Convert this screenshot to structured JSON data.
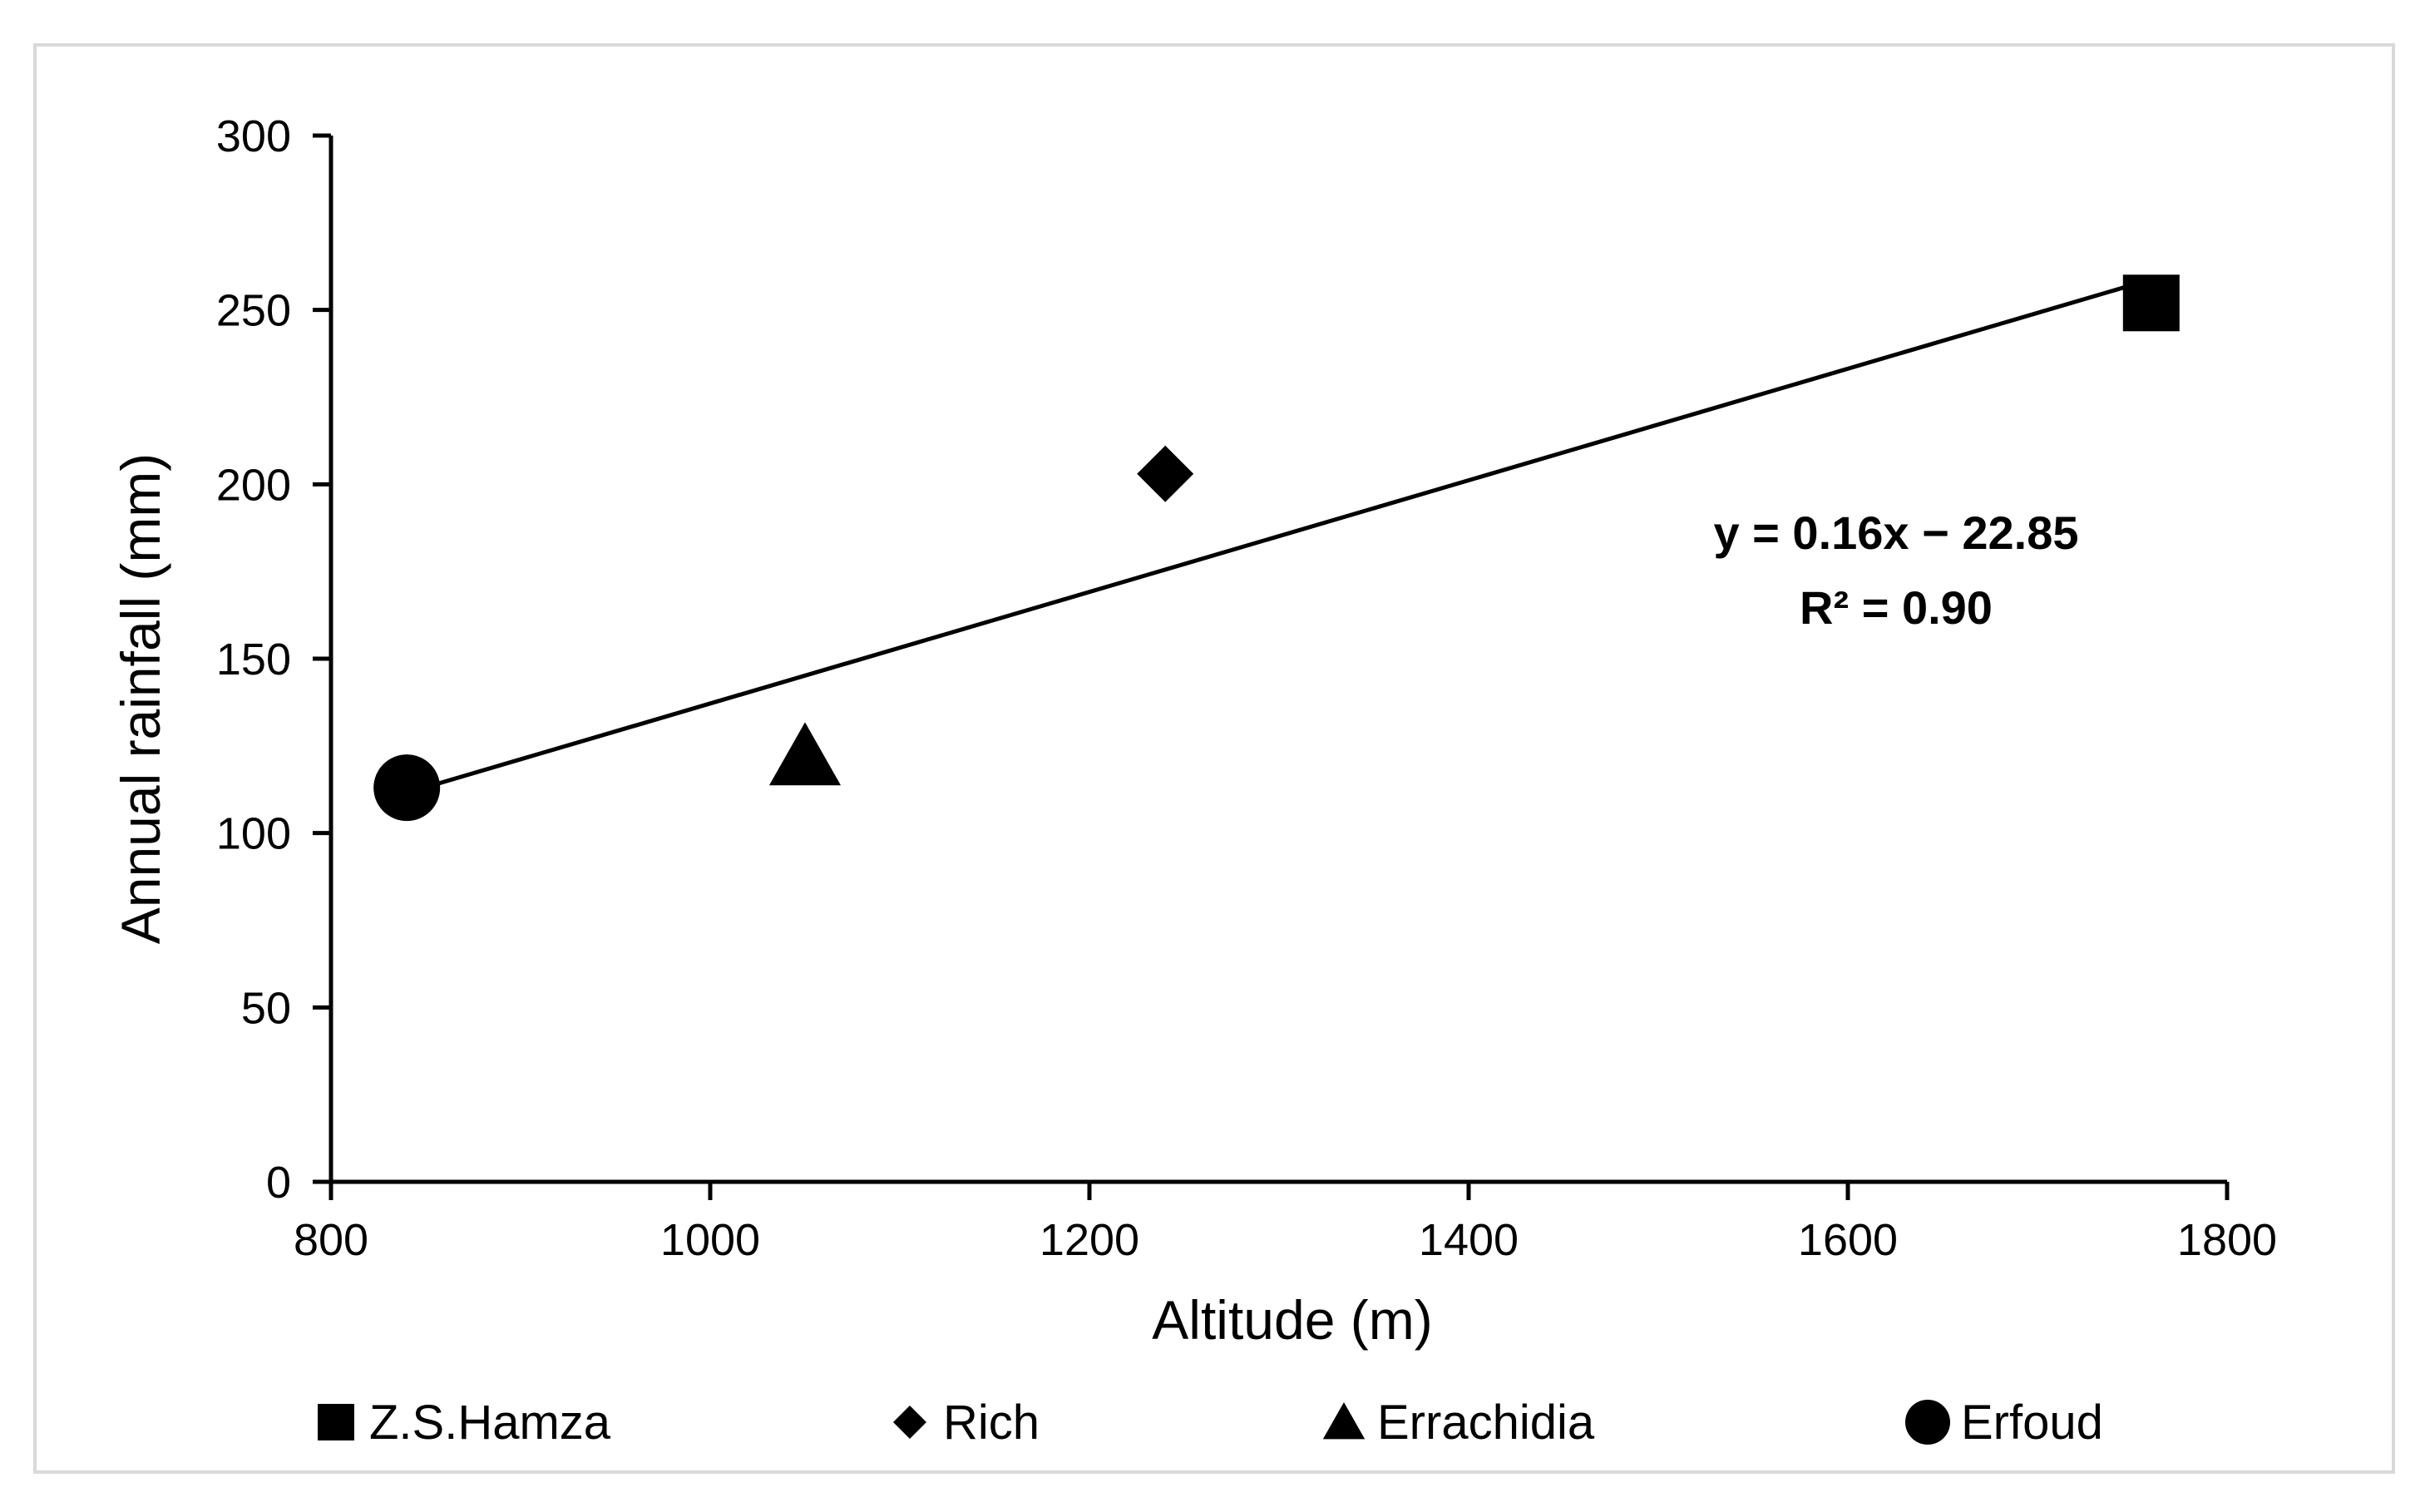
{
  "chart_data": {
    "type": "scatter",
    "title": "",
    "xlabel": "Altitude (m)",
    "ylabel": "Annual rainfall (mm)",
    "xlim": [
      800,
      1800
    ],
    "ylim": [
      0,
      300
    ],
    "x_ticks": [
      800,
      1000,
      1200,
      1400,
      1600,
      1800
    ],
    "y_ticks": [
      0,
      50,
      100,
      150,
      200,
      250,
      300
    ],
    "grid": false,
    "legend_position": "bottom",
    "series": [
      {
        "name": "Z.S.Hamza",
        "marker": "square",
        "color": "#000000",
        "x": [
          1760
        ],
        "y": [
          252
        ]
      },
      {
        "name": "Rich",
        "marker": "diamond",
        "color": "#000000",
        "x": [
          1240
        ],
        "y": [
          203
        ]
      },
      {
        "name": "Errachidia",
        "marker": "triangle",
        "color": "#000000",
        "x": [
          1050
        ],
        "y": [
          122
        ]
      },
      {
        "name": "Erfoud",
        "marker": "circle",
        "color": "#000000",
        "x": [
          840
        ],
        "y": [
          113
        ]
      }
    ],
    "trendline": {
      "equation": "y = 0.16x − 22.85",
      "r_squared": "R² = 0.90",
      "x": [
        840,
        1760
      ],
      "y": [
        111.55,
        258.75
      ],
      "color": "#000000"
    }
  }
}
